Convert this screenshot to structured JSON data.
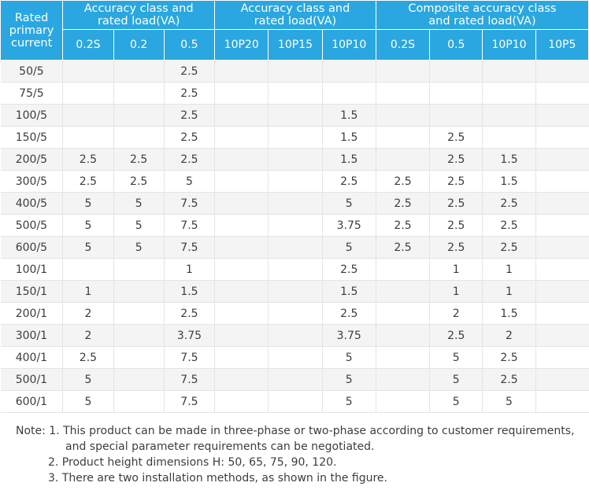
{
  "header": {
    "rated": [
      "Rated",
      "primary",
      "current"
    ],
    "groups": [
      {
        "line1": "Accuracy class and",
        "line2": "rated load(VA)"
      },
      {
        "line1": "Accuracy class and",
        "line2": "rated load(VA)"
      },
      {
        "line1": "Composite accuracy class",
        "line2": "and rated load(VA)"
      }
    ],
    "sub": [
      "0.2S",
      "0.2",
      "0.5",
      "10P20",
      "10P15",
      "10P10",
      "0.2S",
      "0.5",
      "10P10",
      "10P5"
    ]
  },
  "rows": [
    [
      "50/5",
      "",
      "",
      "2.5",
      "",
      "",
      "",
      "",
      "",
      "",
      ""
    ],
    [
      "75/5",
      "",
      "",
      "2.5",
      "",
      "",
      "",
      "",
      "",
      "",
      ""
    ],
    [
      "100/5",
      "",
      "",
      "2.5",
      "",
      "",
      "1.5",
      "",
      "",
      "",
      ""
    ],
    [
      "150/5",
      "",
      "",
      "2.5",
      "",
      "",
      "1.5",
      "",
      "2.5",
      "",
      ""
    ],
    [
      "200/5",
      "2.5",
      "2.5",
      "2.5",
      "",
      "",
      "1.5",
      "",
      "2.5",
      "1.5",
      ""
    ],
    [
      "300/5",
      "2.5",
      "2.5",
      "5",
      "",
      "",
      "2.5",
      "2.5",
      "2.5",
      "1.5",
      ""
    ],
    [
      "400/5",
      "5",
      "5",
      "7.5",
      "",
      "",
      "5",
      "2.5",
      "2.5",
      "2.5",
      ""
    ],
    [
      "500/5",
      "5",
      "5",
      "7.5",
      "",
      "",
      "3.75",
      "2.5",
      "2.5",
      "2.5",
      ""
    ],
    [
      "600/5",
      "5",
      "5",
      "7.5",
      "",
      "",
      "5",
      "2.5",
      "2.5",
      "2.5",
      ""
    ],
    [
      "100/1",
      "",
      "",
      "1",
      "",
      "",
      "2.5",
      "",
      "1",
      "1",
      ""
    ],
    [
      "150/1",
      "1",
      "",
      "1.5",
      "",
      "",
      "1.5",
      "",
      "1",
      "1",
      ""
    ],
    [
      "200/1",
      "2",
      "",
      "2.5",
      "",
      "",
      "2.5",
      "",
      "2",
      "1.5",
      ""
    ],
    [
      "300/1",
      "2",
      "",
      "3.75",
      "",
      "",
      "3.75",
      "",
      "2.5",
      "2",
      ""
    ],
    [
      "400/1",
      "2.5",
      "",
      "7.5",
      "",
      "",
      "5",
      "",
      "5",
      "2.5",
      ""
    ],
    [
      "500/1",
      "5",
      "",
      "7.5",
      "",
      "",
      "5",
      "",
      "5",
      "2.5",
      ""
    ],
    [
      "600/1",
      "5",
      "",
      "7.5",
      "",
      "",
      "5",
      "",
      "5",
      "5",
      ""
    ]
  ],
  "notes": {
    "line1": "Note: 1. This product can be made in three-phase or two-phase according to customer requirements,",
    "line1b": "and special parameter requirements can be negotiated.",
    "line2": "2. Product height dimensions H: 50, 65, 75, 90, 120.",
    "line3": "3. There are two installation methods, as shown in the figure."
  }
}
